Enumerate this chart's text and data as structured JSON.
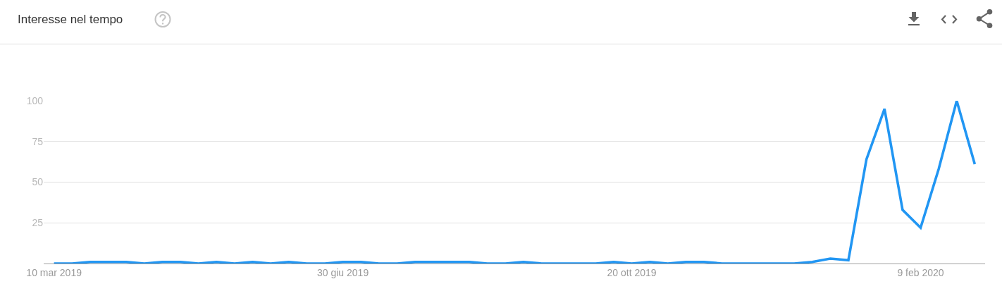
{
  "chart_data": {
    "type": "line",
    "title": "Interesse nel tempo",
    "x": [
      "2019-03-10",
      "2019-03-17",
      "2019-03-24",
      "2019-03-31",
      "2019-04-07",
      "2019-04-14",
      "2019-04-21",
      "2019-04-28",
      "2019-05-05",
      "2019-05-12",
      "2019-05-19",
      "2019-05-26",
      "2019-06-02",
      "2019-06-09",
      "2019-06-16",
      "2019-06-23",
      "2019-06-30",
      "2019-07-07",
      "2019-07-14",
      "2019-07-21",
      "2019-07-28",
      "2019-08-04",
      "2019-08-11",
      "2019-08-18",
      "2019-08-25",
      "2019-09-01",
      "2019-09-08",
      "2019-09-15",
      "2019-09-22",
      "2019-09-29",
      "2019-10-06",
      "2019-10-13",
      "2019-10-20",
      "2019-10-27",
      "2019-11-03",
      "2019-11-10",
      "2019-11-17",
      "2019-11-24",
      "2019-12-01",
      "2019-12-08",
      "2019-12-15",
      "2019-12-22",
      "2019-12-29",
      "2020-01-05",
      "2020-01-12",
      "2020-01-19",
      "2020-01-26",
      "2020-02-02",
      "2020-02-09",
      "2020-02-16",
      "2020-02-23",
      "2020-03-01"
    ],
    "series": [
      {
        "color": "#2196f3",
        "values": [
          0,
          0,
          1,
          1,
          1,
          0,
          1,
          1,
          0,
          1,
          0,
          1,
          0,
          1,
          0,
          0,
          1,
          1,
          0,
          0,
          1,
          1,
          1,
          1,
          0,
          0,
          1,
          0,
          0,
          0,
          0,
          1,
          0,
          1,
          0,
          1,
          1,
          0,
          0,
          0,
          0,
          0,
          1,
          3,
          2,
          64,
          95,
          33,
          22,
          58,
          100,
          61
        ]
      }
    ],
    "xlim": [
      "2019-03-06",
      "2020-03-05"
    ],
    "xticks": [
      {
        "value": "2019-03-10",
        "label": "10 mar 2019"
      },
      {
        "value": "2019-06-30",
        "label": "30 giu 2019"
      },
      {
        "value": "2019-10-20",
        "label": "20 ott 2019"
      },
      {
        "value": "2020-02-09",
        "label": "9 feb 2020"
      }
    ],
    "ylim": [
      0,
      100
    ],
    "yticks": [
      25,
      50,
      75,
      100
    ],
    "grid": "y",
    "line_style": "solid"
  }
}
